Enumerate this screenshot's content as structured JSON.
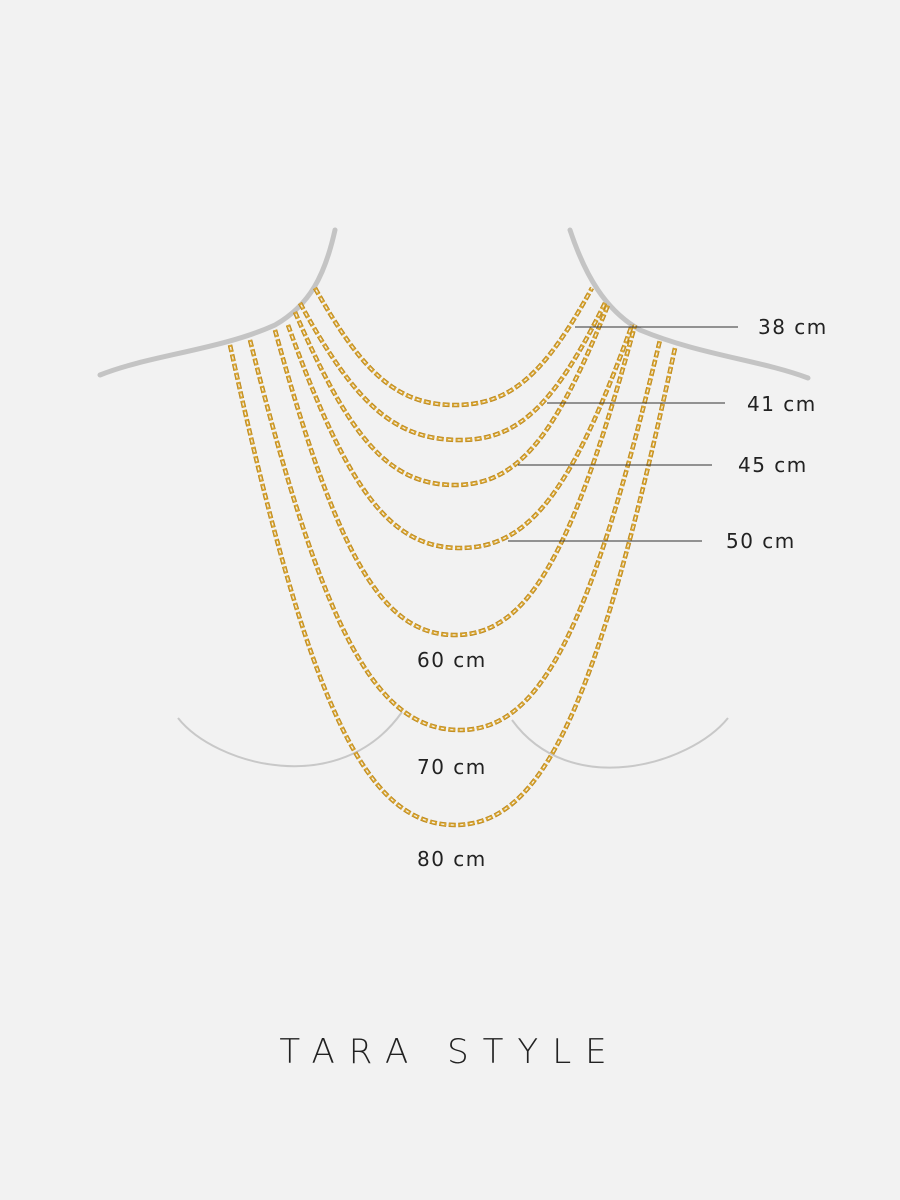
{
  "colors": {
    "background": "#f2f2f2",
    "chain": "#d9a632",
    "chain_dark": "#b8841c",
    "body_outline": "#c4c4c4",
    "leader_line": "#333333"
  },
  "chains": [
    {
      "label": "38 cm",
      "length_cm": 38
    },
    {
      "label": "41 cm",
      "length_cm": 41
    },
    {
      "label": "45 cm",
      "length_cm": 45
    },
    {
      "label": "50 cm",
      "length_cm": 50
    },
    {
      "label": "60 cm",
      "length_cm": 60
    },
    {
      "label": "70 cm",
      "length_cm": 70
    },
    {
      "label": "80 cm",
      "length_cm": 80
    }
  ],
  "brand": "TARA STYLE"
}
